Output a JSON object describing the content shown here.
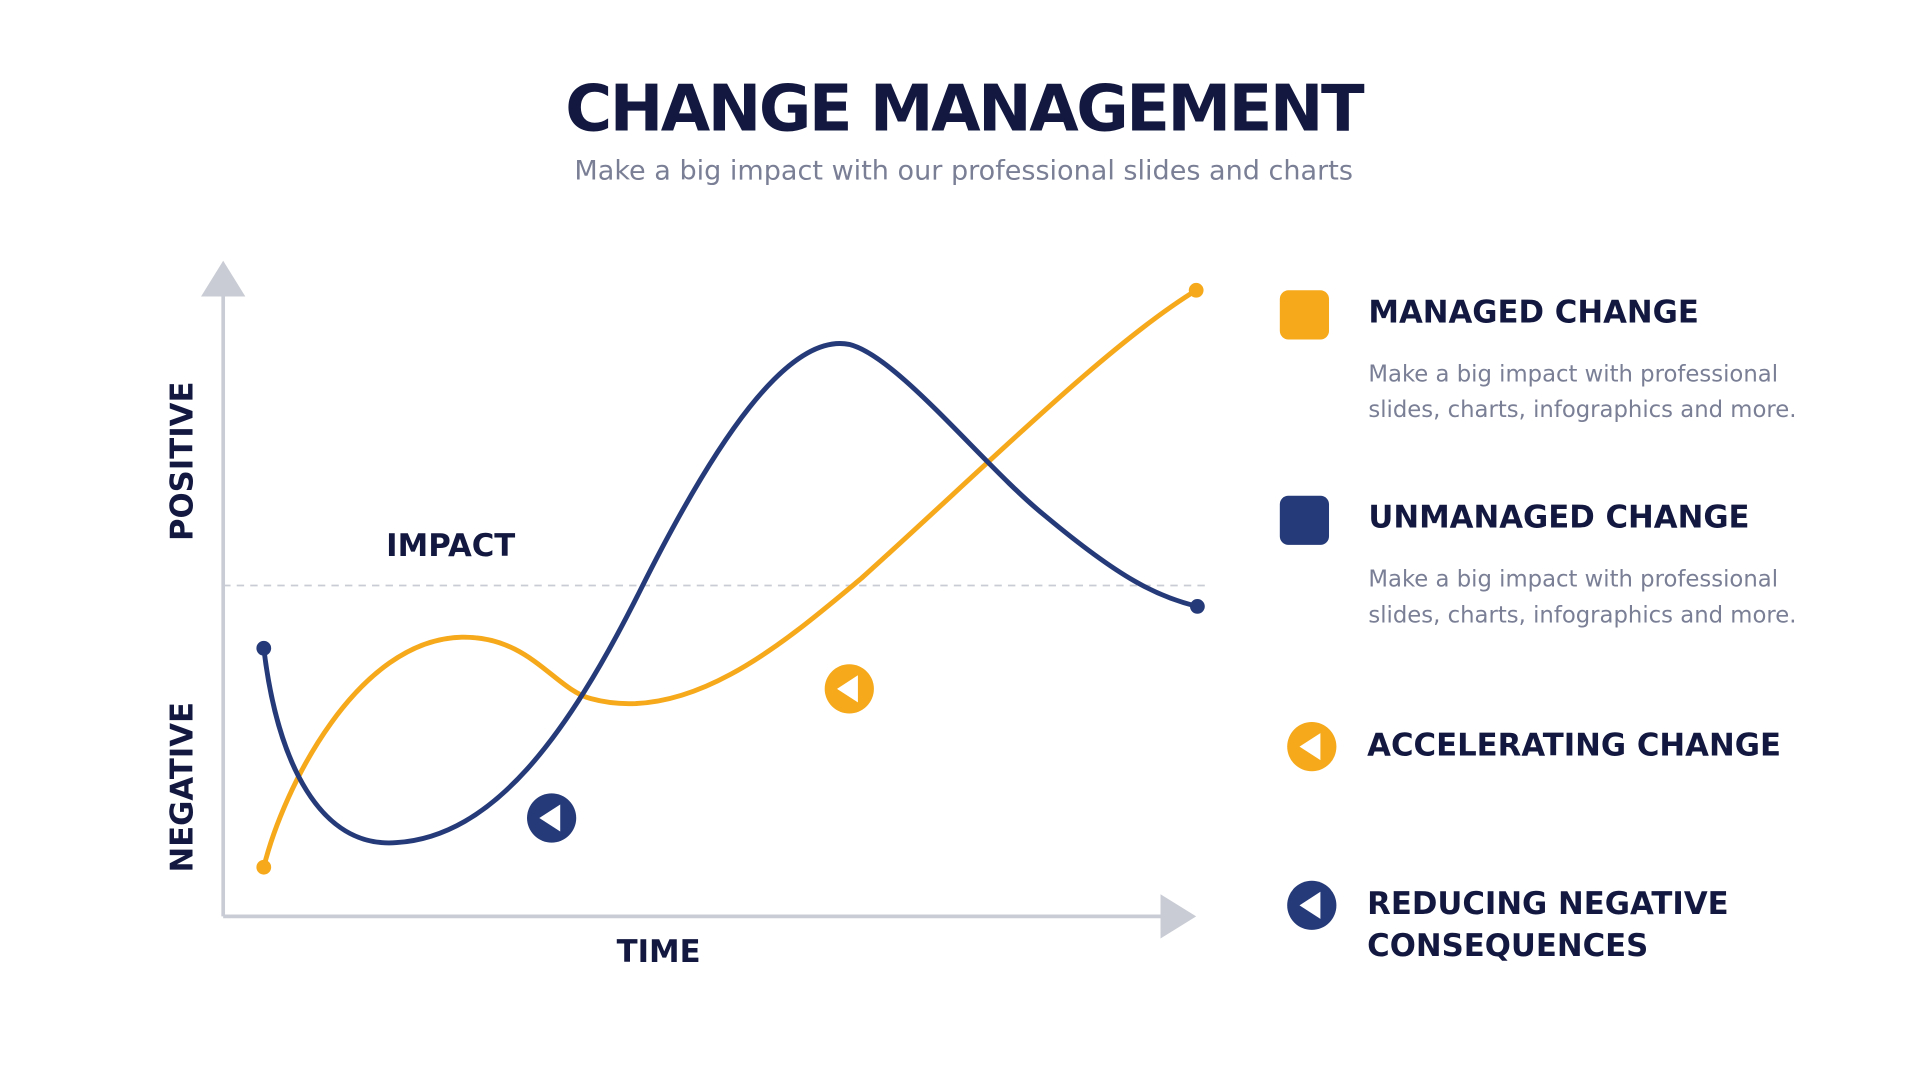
{
  "header": {
    "title": "CHANGE MANAGEMENT",
    "subtitle": "Make a big impact with our professional slides and charts"
  },
  "axes": {
    "positive": "POSITIVE",
    "negative": "NEGATIVE",
    "impact": "IMPACT",
    "time": "TIME"
  },
  "legend": [
    {
      "title_lines": [
        "MANAGED CHANGE"
      ],
      "description_lines": [
        "Make a big impact with professional",
        "slides, charts, infographics and more."
      ]
    },
    {
      "title_lines": [
        "UNMANAGED CHANGE"
      ],
      "description_lines": [
        "Make a big impact with professional",
        "slides, charts, infographics and more."
      ]
    },
    {
      "title_lines": [
        "ACCELERATING CHANGE"
      ]
    },
    {
      "title_lines": [
        "REDUCING NEGATIVE",
        "CONSEQUENCES"
      ]
    }
  ]
}
